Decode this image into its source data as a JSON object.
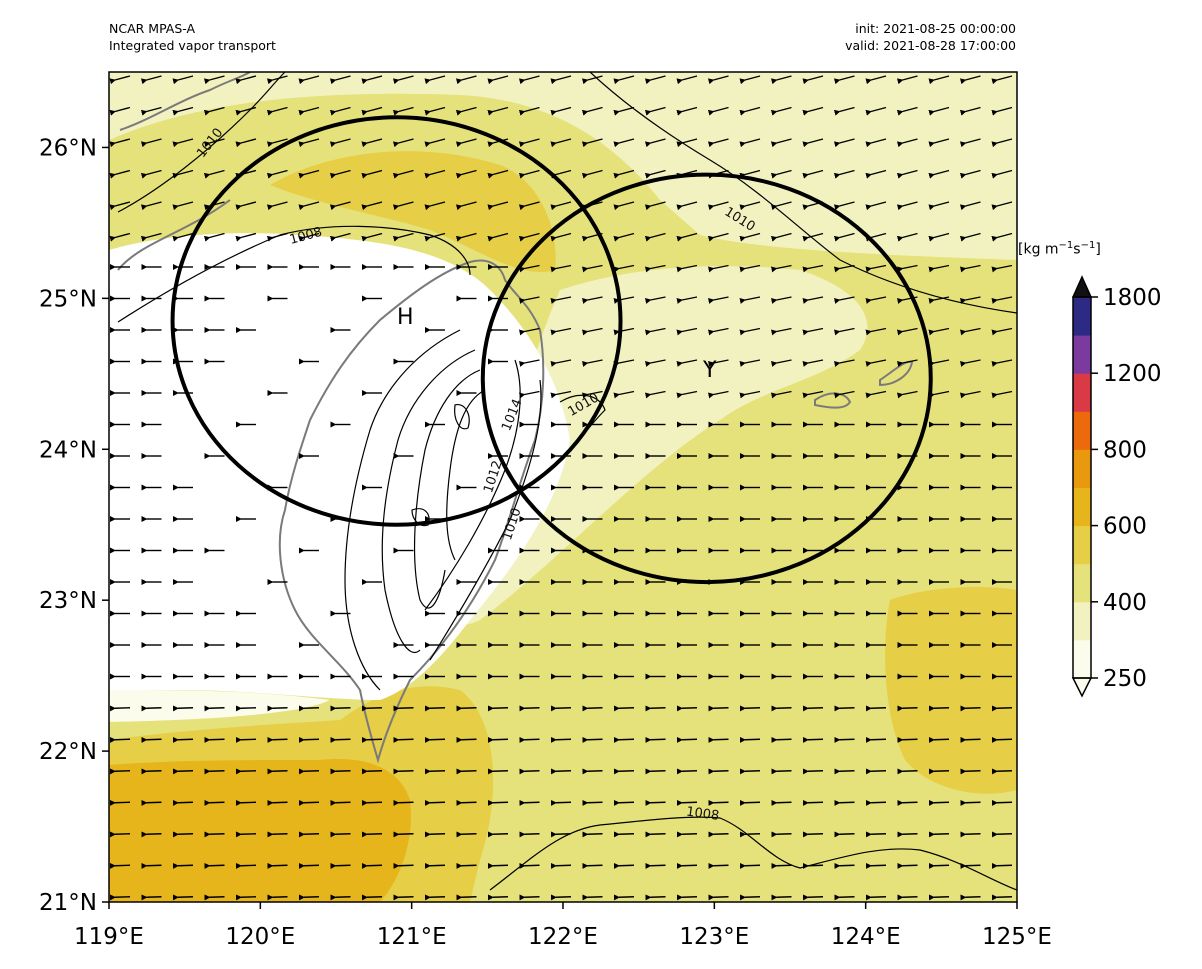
{
  "header": {
    "model": "NCAR MPAS-A",
    "field": "Integrated vapor transport",
    "init": "init: 2021-08-25 00:00:00",
    "valid": "valid: 2021-08-28 17:00:00"
  },
  "axes": {
    "lon_ticks": [
      "119°E",
      "120°E",
      "121°E",
      "122°E",
      "123°E",
      "124°E",
      "125°E"
    ],
    "lat_ticks": [
      "21°N",
      "22°N",
      "23°N",
      "24°N",
      "25°N",
      "26°N"
    ],
    "lon_range": [
      119,
      125
    ],
    "lat_range": [
      21,
      26.5
    ]
  },
  "colorbar": {
    "units_base": "[kg m",
    "units_exp1": "−1",
    "units_mid": "s",
    "units_exp2": "−1",
    "units_end": "]",
    "tick_labels": [
      "250",
      "400",
      "600",
      "800",
      "1200",
      "1800"
    ],
    "levels": [
      250,
      300,
      400,
      500,
      600,
      700,
      800,
      1000,
      1200,
      1500,
      1800
    ],
    "colors": [
      "#fcfcec",
      "#f2f2c0",
      "#e5e27c",
      "#e6ce47",
      "#e6b51c",
      "#e8990e",
      "#ec6a0c",
      "#d93a45",
      "#7d3a9e",
      "#2c2a82"
    ],
    "extend": "both"
  },
  "markers": {
    "h": "H",
    "y": "Y"
  },
  "circles": [
    {
      "name": "circle-h",
      "center_lon": 120.9,
      "center_lat": 24.85,
      "r_lon": 1.48,
      "r_lat": 1.35
    },
    {
      "name": "circle-y",
      "center_lon": 122.95,
      "center_lat": 24.47,
      "r_lon": 1.48,
      "r_lat": 1.35
    }
  ],
  "contour_labels": [
    "1010",
    "1008",
    "1010",
    "1014",
    "1010",
    "1012",
    "1010",
    "1008"
  ],
  "colors": {
    "background": "#ffffff",
    "coast": "#7a7a7a",
    "contour": "#000000"
  }
}
